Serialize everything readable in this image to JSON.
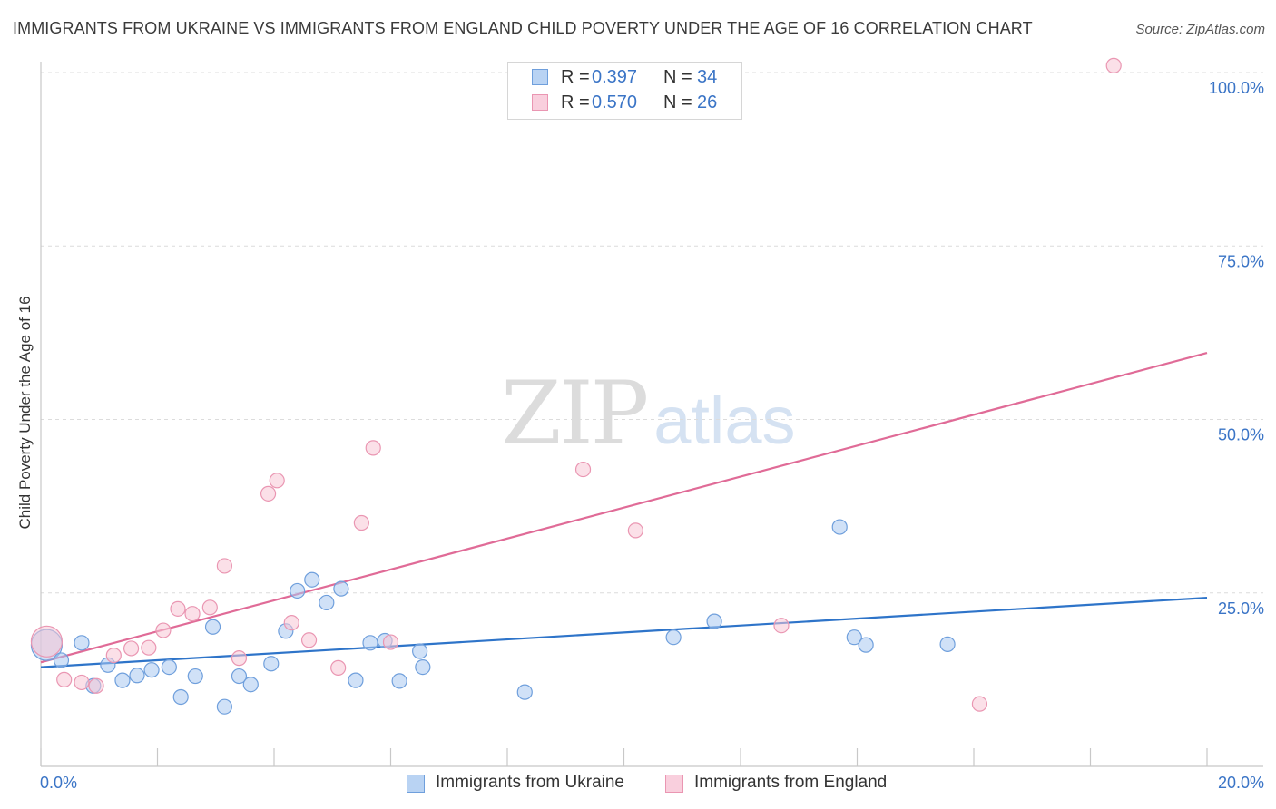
{
  "title": "IMMIGRANTS FROM UKRAINE VS IMMIGRANTS FROM ENGLAND CHILD POVERTY UNDER THE AGE OF 16 CORRELATION CHART",
  "source": "Source: ZipAtlas.com",
  "watermark": {
    "part1": "ZIP",
    "part2": "atlas"
  },
  "legend": {
    "series1": {
      "r_label": "R =",
      "r_value": "0.397",
      "n_label": "N =",
      "n_value": "34"
    },
    "series2": {
      "r_label": "R =",
      "r_value": "0.570",
      "n_label": "N =",
      "n_value": "26"
    }
  },
  "chart_data": {
    "type": "scatter",
    "title": "IMMIGRANTS FROM UKRAINE VS IMMIGRANTS FROM ENGLAND CHILD POVERTY UNDER THE AGE OF 16 CORRELATION CHART",
    "xlabel": "",
    "ylabel": "Child Poverty Under the Age of 16",
    "xlim": [
      0,
      20
    ],
    "ylim": [
      0,
      100
    ],
    "x_tick_labels": [
      "0.0%",
      "20.0%"
    ],
    "y_ticks": [
      25,
      50,
      75,
      100
    ],
    "y_tick_labels": [
      "25.0%",
      "50.0%",
      "75.0%",
      "100.0%"
    ],
    "grid": true,
    "legend_position": "top-center",
    "series": [
      {
        "name": "Immigrants from Ukraine",
        "color": "#a9c8f0",
        "stroke": "#6f9fdc",
        "line_color": "#2e74c9",
        "trend": {
          "x0": 0,
          "y0": 14.3,
          "x1": 20,
          "y1": 24.3
        },
        "points": [
          {
            "x": 0.1,
            "y": 17.5,
            "big": true
          },
          {
            "x": 0.35,
            "y": 15.3
          },
          {
            "x": 0.7,
            "y": 17.8
          },
          {
            "x": 0.9,
            "y": 11.6
          },
          {
            "x": 1.15,
            "y": 14.6
          },
          {
            "x": 1.4,
            "y": 12.4
          },
          {
            "x": 1.65,
            "y": 13.1
          },
          {
            "x": 1.9,
            "y": 13.9
          },
          {
            "x": 2.2,
            "y": 14.3
          },
          {
            "x": 2.4,
            "y": 10.0
          },
          {
            "x": 2.65,
            "y": 13.0
          },
          {
            "x": 2.95,
            "y": 20.1
          },
          {
            "x": 3.15,
            "y": 8.6
          },
          {
            "x": 3.4,
            "y": 13.0
          },
          {
            "x": 3.6,
            "y": 11.8
          },
          {
            "x": 3.95,
            "y": 14.8
          },
          {
            "x": 4.2,
            "y": 19.5
          },
          {
            "x": 4.4,
            "y": 25.3
          },
          {
            "x": 4.65,
            "y": 26.9
          },
          {
            "x": 4.9,
            "y": 23.6
          },
          {
            "x": 5.15,
            "y": 25.6
          },
          {
            "x": 5.4,
            "y": 12.4
          },
          {
            "x": 5.65,
            "y": 17.8
          },
          {
            "x": 5.9,
            "y": 18.1
          },
          {
            "x": 6.15,
            "y": 12.3
          },
          {
            "x": 6.5,
            "y": 16.6
          },
          {
            "x": 6.55,
            "y": 14.3
          },
          {
            "x": 8.3,
            "y": 10.7
          },
          {
            "x": 10.85,
            "y": 18.6
          },
          {
            "x": 11.55,
            "y": 20.9
          },
          {
            "x": 13.7,
            "y": 34.5
          },
          {
            "x": 13.95,
            "y": 18.6
          },
          {
            "x": 14.15,
            "y": 17.5
          },
          {
            "x": 15.55,
            "y": 17.6
          }
        ]
      },
      {
        "name": "Immigrants from England",
        "color": "#f7c6d6",
        "stroke": "#ea96b2",
        "line_color": "#e06b97",
        "trend": {
          "x0": 0,
          "y0": 15.0,
          "x1": 20,
          "y1": 59.6
        },
        "points": [
          {
            "x": 0.1,
            "y": 18.0,
            "big": true
          },
          {
            "x": 0.4,
            "y": 12.5
          },
          {
            "x": 0.7,
            "y": 12.1
          },
          {
            "x": 0.95,
            "y": 11.6
          },
          {
            "x": 1.25,
            "y": 16.0
          },
          {
            "x": 1.55,
            "y": 17.0
          },
          {
            "x": 1.85,
            "y": 17.1
          },
          {
            "x": 2.1,
            "y": 19.6
          },
          {
            "x": 2.35,
            "y": 22.7
          },
          {
            "x": 2.6,
            "y": 22.0
          },
          {
            "x": 2.9,
            "y": 22.9
          },
          {
            "x": 3.15,
            "y": 28.9
          },
          {
            "x": 3.4,
            "y": 15.6
          },
          {
            "x": 3.9,
            "y": 39.3
          },
          {
            "x": 4.05,
            "y": 41.2
          },
          {
            "x": 4.3,
            "y": 20.7
          },
          {
            "x": 4.6,
            "y": 18.2
          },
          {
            "x": 5.1,
            "y": 14.2
          },
          {
            "x": 5.5,
            "y": 35.1
          },
          {
            "x": 5.7,
            "y": 45.9
          },
          {
            "x": 6.0,
            "y": 17.9
          },
          {
            "x": 9.3,
            "y": 42.8
          },
          {
            "x": 10.2,
            "y": 34.0
          },
          {
            "x": 12.7,
            "y": 20.3
          },
          {
            "x": 16.1,
            "y": 9.0
          },
          {
            "x": 18.4,
            "y": 101.0
          }
        ]
      }
    ]
  }
}
